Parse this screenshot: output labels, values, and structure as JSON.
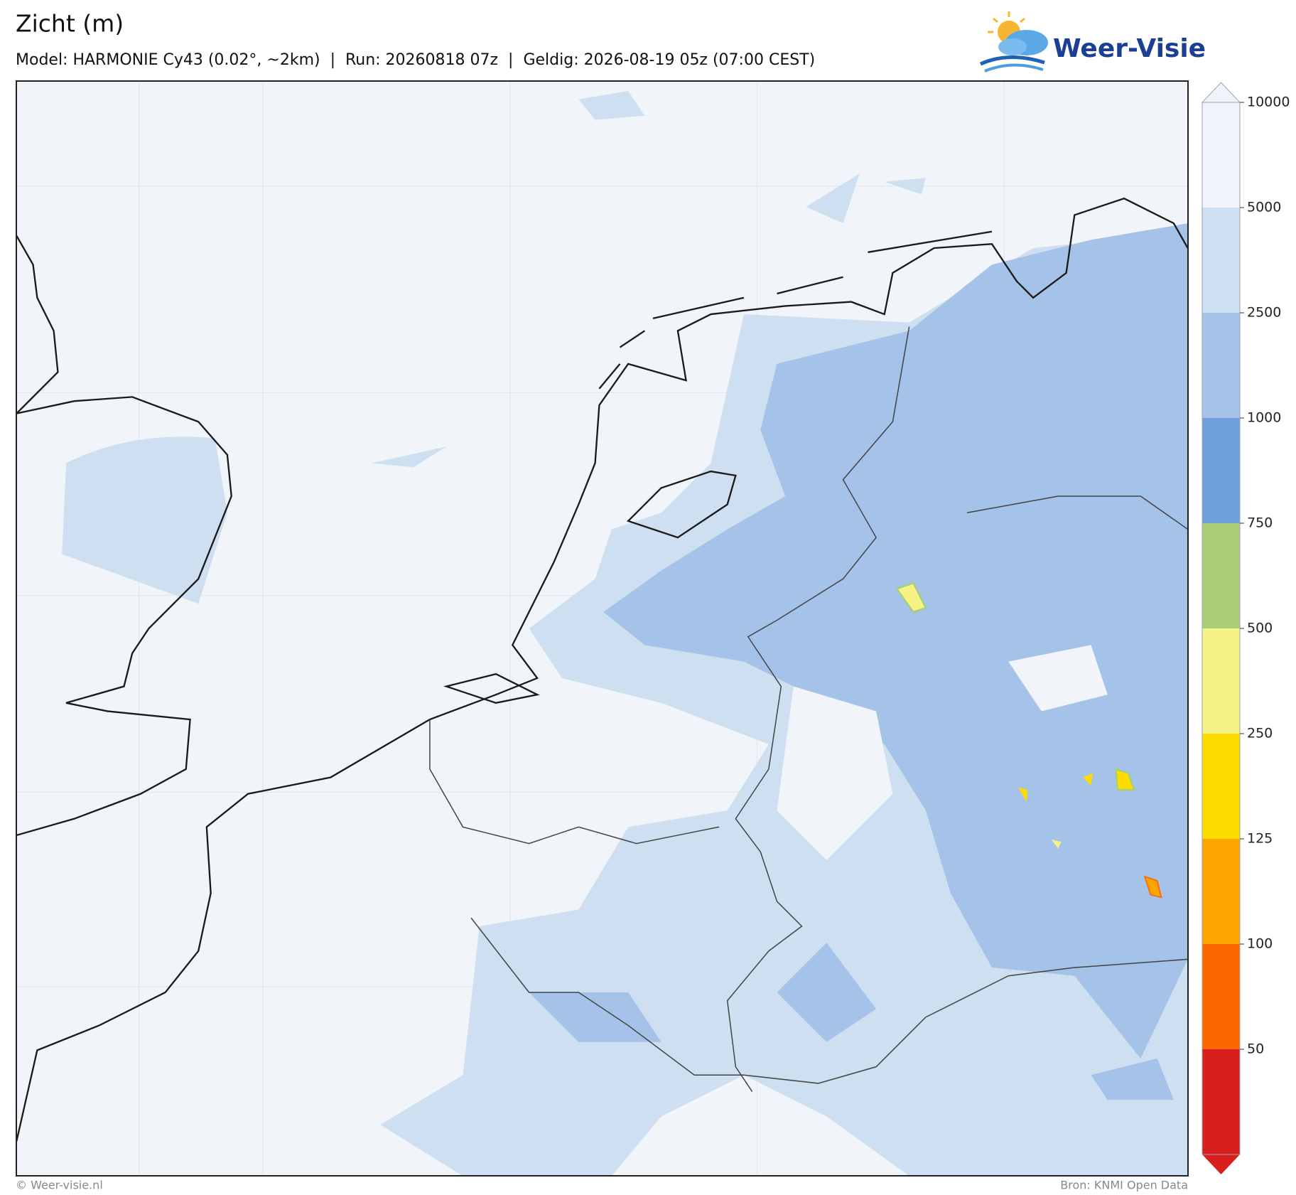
{
  "header": {
    "title": "Zicht (m)",
    "subtitle": "Model: HARMONIE Cy43 (0.02°, ~2km)  |  Run: 20260818 07z  |  Geldig: 2026-08-19 05z (07:00 CEST)",
    "logo": "Weer-Visie"
  },
  "colorbar": {
    "ticks": [
      10000,
      5000,
      2500,
      1000,
      750,
      500,
      250,
      125,
      100,
      50
    ],
    "colors": [
      "#f0f4fa",
      "#cddff1",
      "#a5c2e8",
      "#6d9fd9",
      "#a9cd77",
      "#f6f386",
      "#fddd00",
      "#fca400",
      "#fd6700",
      "#d91e1e"
    ]
  },
  "footer": {
    "left": "© Weer-visie.nl",
    "right": "Bron: KNMI Open Data"
  }
}
